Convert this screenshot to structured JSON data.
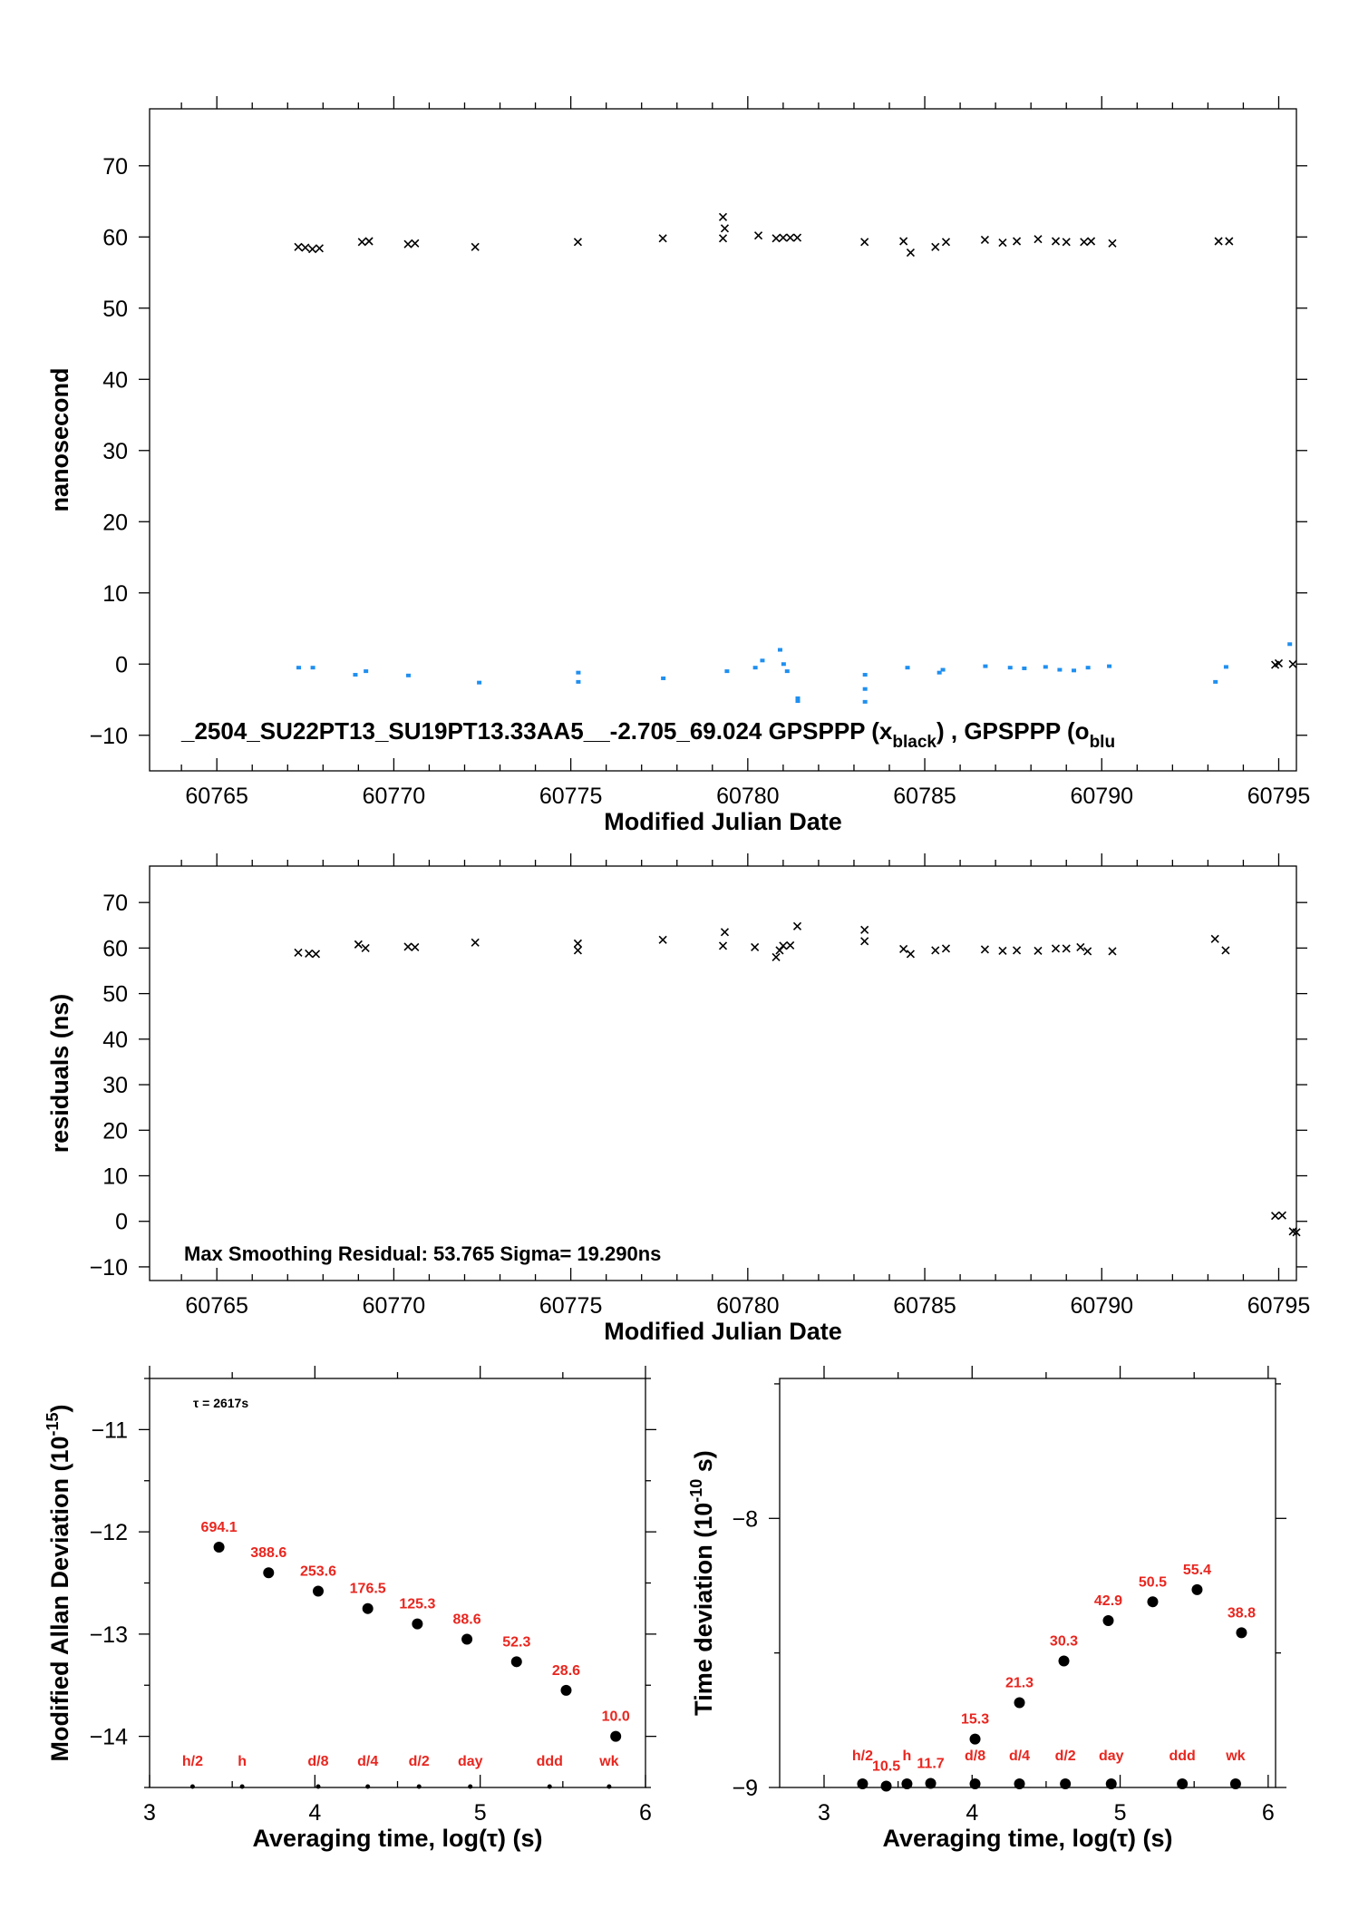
{
  "colors": {
    "black_series": "#000000",
    "blue_series": "#1f8ff0",
    "labels_red": "#e8261f"
  },
  "chart_data": [
    {
      "id": "top",
      "type": "scatter",
      "xlabel": "Modified Julian Date",
      "ylabel": "nanosecond",
      "xlim": [
        60763.1,
        60795.5
      ],
      "ylim": [
        -15,
        78
      ],
      "xticks": [
        60765,
        60770,
        60775,
        60780,
        60785,
        60790,
        60795
      ],
      "yticks": [
        -10,
        0,
        10,
        20,
        30,
        40,
        50,
        60,
        70
      ],
      "annotation": "_2504_SU22PT13_SU19PT13.33AA5__-2.705_69.024     GPSPPP (x",
      "legend_sub1": "black",
      "legend_mid": ") ,  GPSPPP (o",
      "legend_sub2": "blu",
      "series": [
        {
          "marker": "x",
          "color": "#000000",
          "points": [
            [
              60767.3,
              58.6
            ],
            [
              60767.5,
              58.5
            ],
            [
              60767.7,
              58.3
            ],
            [
              60767.9,
              58.4
            ],
            [
              60769.1,
              59.3
            ],
            [
              60769.3,
              59.4
            ],
            [
              60770.4,
              59.0
            ],
            [
              60770.6,
              59.1
            ],
            [
              60772.3,
              58.6
            ],
            [
              60775.2,
              59.3
            ],
            [
              60777.6,
              59.8
            ],
            [
              60779.3,
              62.8
            ],
            [
              60779.35,
              61.2
            ],
            [
              60779.3,
              59.8
            ],
            [
              60780.3,
              60.2
            ],
            [
              60780.8,
              59.8
            ],
            [
              60781.0,
              59.9
            ],
            [
              60781.2,
              59.9
            ],
            [
              60781.4,
              59.9
            ],
            [
              60783.3,
              59.3
            ],
            [
              60784.4,
              59.4
            ],
            [
              60784.6,
              57.8
            ],
            [
              60785.3,
              58.6
            ],
            [
              60785.6,
              59.3
            ],
            [
              60786.7,
              59.6
            ],
            [
              60787.2,
              59.2
            ],
            [
              60787.6,
              59.4
            ],
            [
              60788.2,
              59.7
            ],
            [
              60788.7,
              59.4
            ],
            [
              60789.0,
              59.3
            ],
            [
              60789.5,
              59.3
            ],
            [
              60789.7,
              59.4
            ],
            [
              60790.3,
              59.1
            ],
            [
              60793.3,
              59.4
            ],
            [
              60793.6,
              59.4
            ],
            [
              60794.9,
              -0.1
            ],
            [
              60795.0,
              0.1
            ],
            [
              60795.4,
              0.0
            ]
          ]
        },
        {
          "marker": "o",
          "color": "#1f8ff0",
          "points": [
            [
              60767.3,
              -0.5
            ],
            [
              60767.7,
              -0.5
            ],
            [
              60768.9,
              -1.5
            ],
            [
              60769.2,
              -1.0
            ],
            [
              60770.4,
              -1.6
            ],
            [
              60772.4,
              -2.6
            ],
            [
              60775.2,
              -1.2
            ],
            [
              60775.2,
              -2.5
            ],
            [
              60777.6,
              -2.0
            ],
            [
              60779.4,
              -1.0
            ],
            [
              60780.2,
              -0.5
            ],
            [
              60780.4,
              0.5
            ],
            [
              60780.9,
              2.0
            ],
            [
              60781.0,
              0.0
            ],
            [
              60781.1,
              -1.0
            ],
            [
              60781.4,
              -4.8
            ],
            [
              60781.4,
              -5.2
            ],
            [
              60783.3,
              -1.5
            ],
            [
              60783.3,
              -3.5
            ],
            [
              60783.3,
              -5.3
            ],
            [
              60784.5,
              -0.5
            ],
            [
              60785.5,
              -0.8
            ],
            [
              60785.4,
              -1.2
            ],
            [
              60786.7,
              -0.3
            ],
            [
              60787.4,
              -0.5
            ],
            [
              60787.8,
              -0.6
            ],
            [
              60788.4,
              -0.4
            ],
            [
              60788.8,
              -0.8
            ],
            [
              60789.2,
              -0.9
            ],
            [
              60789.6,
              -0.5
            ],
            [
              60790.2,
              -0.3
            ],
            [
              60793.2,
              -2.5
            ],
            [
              60793.5,
              -0.4
            ],
            [
              60795.3,
              2.8
            ]
          ]
        }
      ]
    },
    {
      "id": "middle",
      "type": "scatter",
      "xlabel": "Modified Julian Date",
      "ylabel": "residuals (ns)",
      "xlim": [
        60763.1,
        60795.5
      ],
      "ylim": [
        -13,
        78
      ],
      "xticks": [
        60765,
        60770,
        60775,
        60780,
        60785,
        60790,
        60795
      ],
      "yticks": [
        -10,
        0,
        10,
        20,
        30,
        40,
        50,
        60,
        70
      ],
      "annotation": "Max Smoothing Residual: 53.765  Sigma= 19.290ns",
      "series": [
        {
          "marker": "x",
          "color": "#000000",
          "points": [
            [
              60767.3,
              59.0
            ],
            [
              60767.6,
              58.8
            ],
            [
              60767.8,
              58.7
            ],
            [
              60769.0,
              60.8
            ],
            [
              60769.2,
              60.0
            ],
            [
              60770.4,
              60.3
            ],
            [
              60770.6,
              60.2
            ],
            [
              60772.3,
              61.2
            ],
            [
              60775.2,
              61.0
            ],
            [
              60775.2,
              59.5
            ],
            [
              60777.6,
              61.8
            ],
            [
              60779.3,
              60.5
            ],
            [
              60779.35,
              63.5
            ],
            [
              60780.2,
              60.2
            ],
            [
              60780.8,
              58.0
            ],
            [
              60780.9,
              59.5
            ],
            [
              60781.0,
              60.5
            ],
            [
              60781.2,
              60.6
            ],
            [
              60781.4,
              64.8
            ],
            [
              60783.3,
              64.0
            ],
            [
              60783.3,
              61.5
            ],
            [
              60784.4,
              59.8
            ],
            [
              60784.6,
              58.7
            ],
            [
              60785.3,
              59.5
            ],
            [
              60785.6,
              59.9
            ],
            [
              60786.7,
              59.7
            ],
            [
              60787.2,
              59.4
            ],
            [
              60787.6,
              59.5
            ],
            [
              60788.2,
              59.4
            ],
            [
              60788.7,
              59.9
            ],
            [
              60789.0,
              59.9
            ],
            [
              60789.4,
              60.2
            ],
            [
              60789.6,
              59.3
            ],
            [
              60790.3,
              59.3
            ],
            [
              60793.2,
              62.0
            ],
            [
              60793.5,
              59.5
            ],
            [
              60794.9,
              1.2
            ],
            [
              60795.1,
              1.3
            ],
            [
              60795.4,
              -2.2
            ],
            [
              60795.5,
              -2.4
            ]
          ]
        }
      ]
    },
    {
      "id": "mdev",
      "type": "scatter",
      "xlabel": "Averaging time, log(τ) (s)",
      "ylabel_main": "Modified Allan Deviation (10",
      "ylabel_sup": "-15",
      "ylabel_end": ")",
      "xlim": [
        3,
        6
      ],
      "ylim": [
        -14.5,
        -10.5
      ],
      "xticks": [
        3,
        4,
        5,
        6
      ],
      "yticks": [
        -14,
        -13,
        -12,
        -11
      ],
      "tau_note": "τ = 2617s",
      "points": [
        {
          "x": 3.42,
          "y": -12.15,
          "label": "694.1"
        },
        {
          "x": 3.72,
          "y": -12.4,
          "label": "388.6"
        },
        {
          "x": 4.02,
          "y": -12.58,
          "label": "253.6"
        },
        {
          "x": 4.32,
          "y": -12.75,
          "label": "176.5"
        },
        {
          "x": 4.62,
          "y": -12.9,
          "label": "125.3"
        },
        {
          "x": 4.92,
          "y": -13.05,
          "label": "88.6"
        },
        {
          "x": 5.22,
          "y": -13.27,
          "label": "52.3"
        },
        {
          "x": 5.52,
          "y": -13.55,
          "label": "28.6"
        },
        {
          "x": 5.82,
          "y": -14.0,
          "label": "10.0"
        }
      ],
      "markers": [
        {
          "x": 3.26,
          "label": "h/2"
        },
        {
          "x": 3.56,
          "label": "h"
        },
        {
          "x": 4.02,
          "label": "d/8"
        },
        {
          "x": 4.32,
          "label": "d/4"
        },
        {
          "x": 4.63,
          "label": "d/2"
        },
        {
          "x": 4.94,
          "label": "day"
        },
        {
          "x": 5.42,
          "label": "ddd"
        },
        {
          "x": 5.78,
          "label": "wk"
        }
      ]
    },
    {
      "id": "tdev",
      "type": "scatter",
      "xlabel": "Averaging time, log(τ) (s)",
      "ylabel_main": "Time deviation (10",
      "ylabel_sup": "-10",
      "ylabel_end": " s)",
      "xlim": [
        2.7,
        6.05
      ],
      "ylim": [
        -9.0,
        -7.48
      ],
      "xticks": [
        3,
        4,
        5,
        6
      ],
      "yticks": [
        -9,
        -8
      ],
      "points": [
        {
          "x": 3.72,
          "y": -8.985,
          "label": "11.7"
        },
        {
          "x": 4.02,
          "y": -8.82,
          "label": "15.3"
        },
        {
          "x": 4.32,
          "y": -8.685,
          "label": "21.3"
        },
        {
          "x": 4.62,
          "y": -8.53,
          "label": "30.3"
        },
        {
          "x": 4.92,
          "y": -8.38,
          "label": "42.9"
        },
        {
          "x": 5.22,
          "y": -8.31,
          "label": "50.5"
        },
        {
          "x": 5.52,
          "y": -8.265,
          "label": "55.4"
        },
        {
          "x": 5.82,
          "y": -8.425,
          "label": "38.8"
        }
      ],
      "extra_points": [
        {
          "x": 3.42,
          "y": -8.995,
          "label": "10.5"
        }
      ],
      "markers": [
        {
          "x": 3.26,
          "label": "h/2"
        },
        {
          "x": 3.56,
          "label": "h"
        },
        {
          "x": 4.02,
          "label": "d/8"
        },
        {
          "x": 4.32,
          "label": "d/4"
        },
        {
          "x": 4.63,
          "label": "d/2"
        },
        {
          "x": 4.94,
          "label": "day"
        },
        {
          "x": 5.42,
          "label": "ddd"
        },
        {
          "x": 5.78,
          "label": "wk"
        }
      ]
    }
  ]
}
